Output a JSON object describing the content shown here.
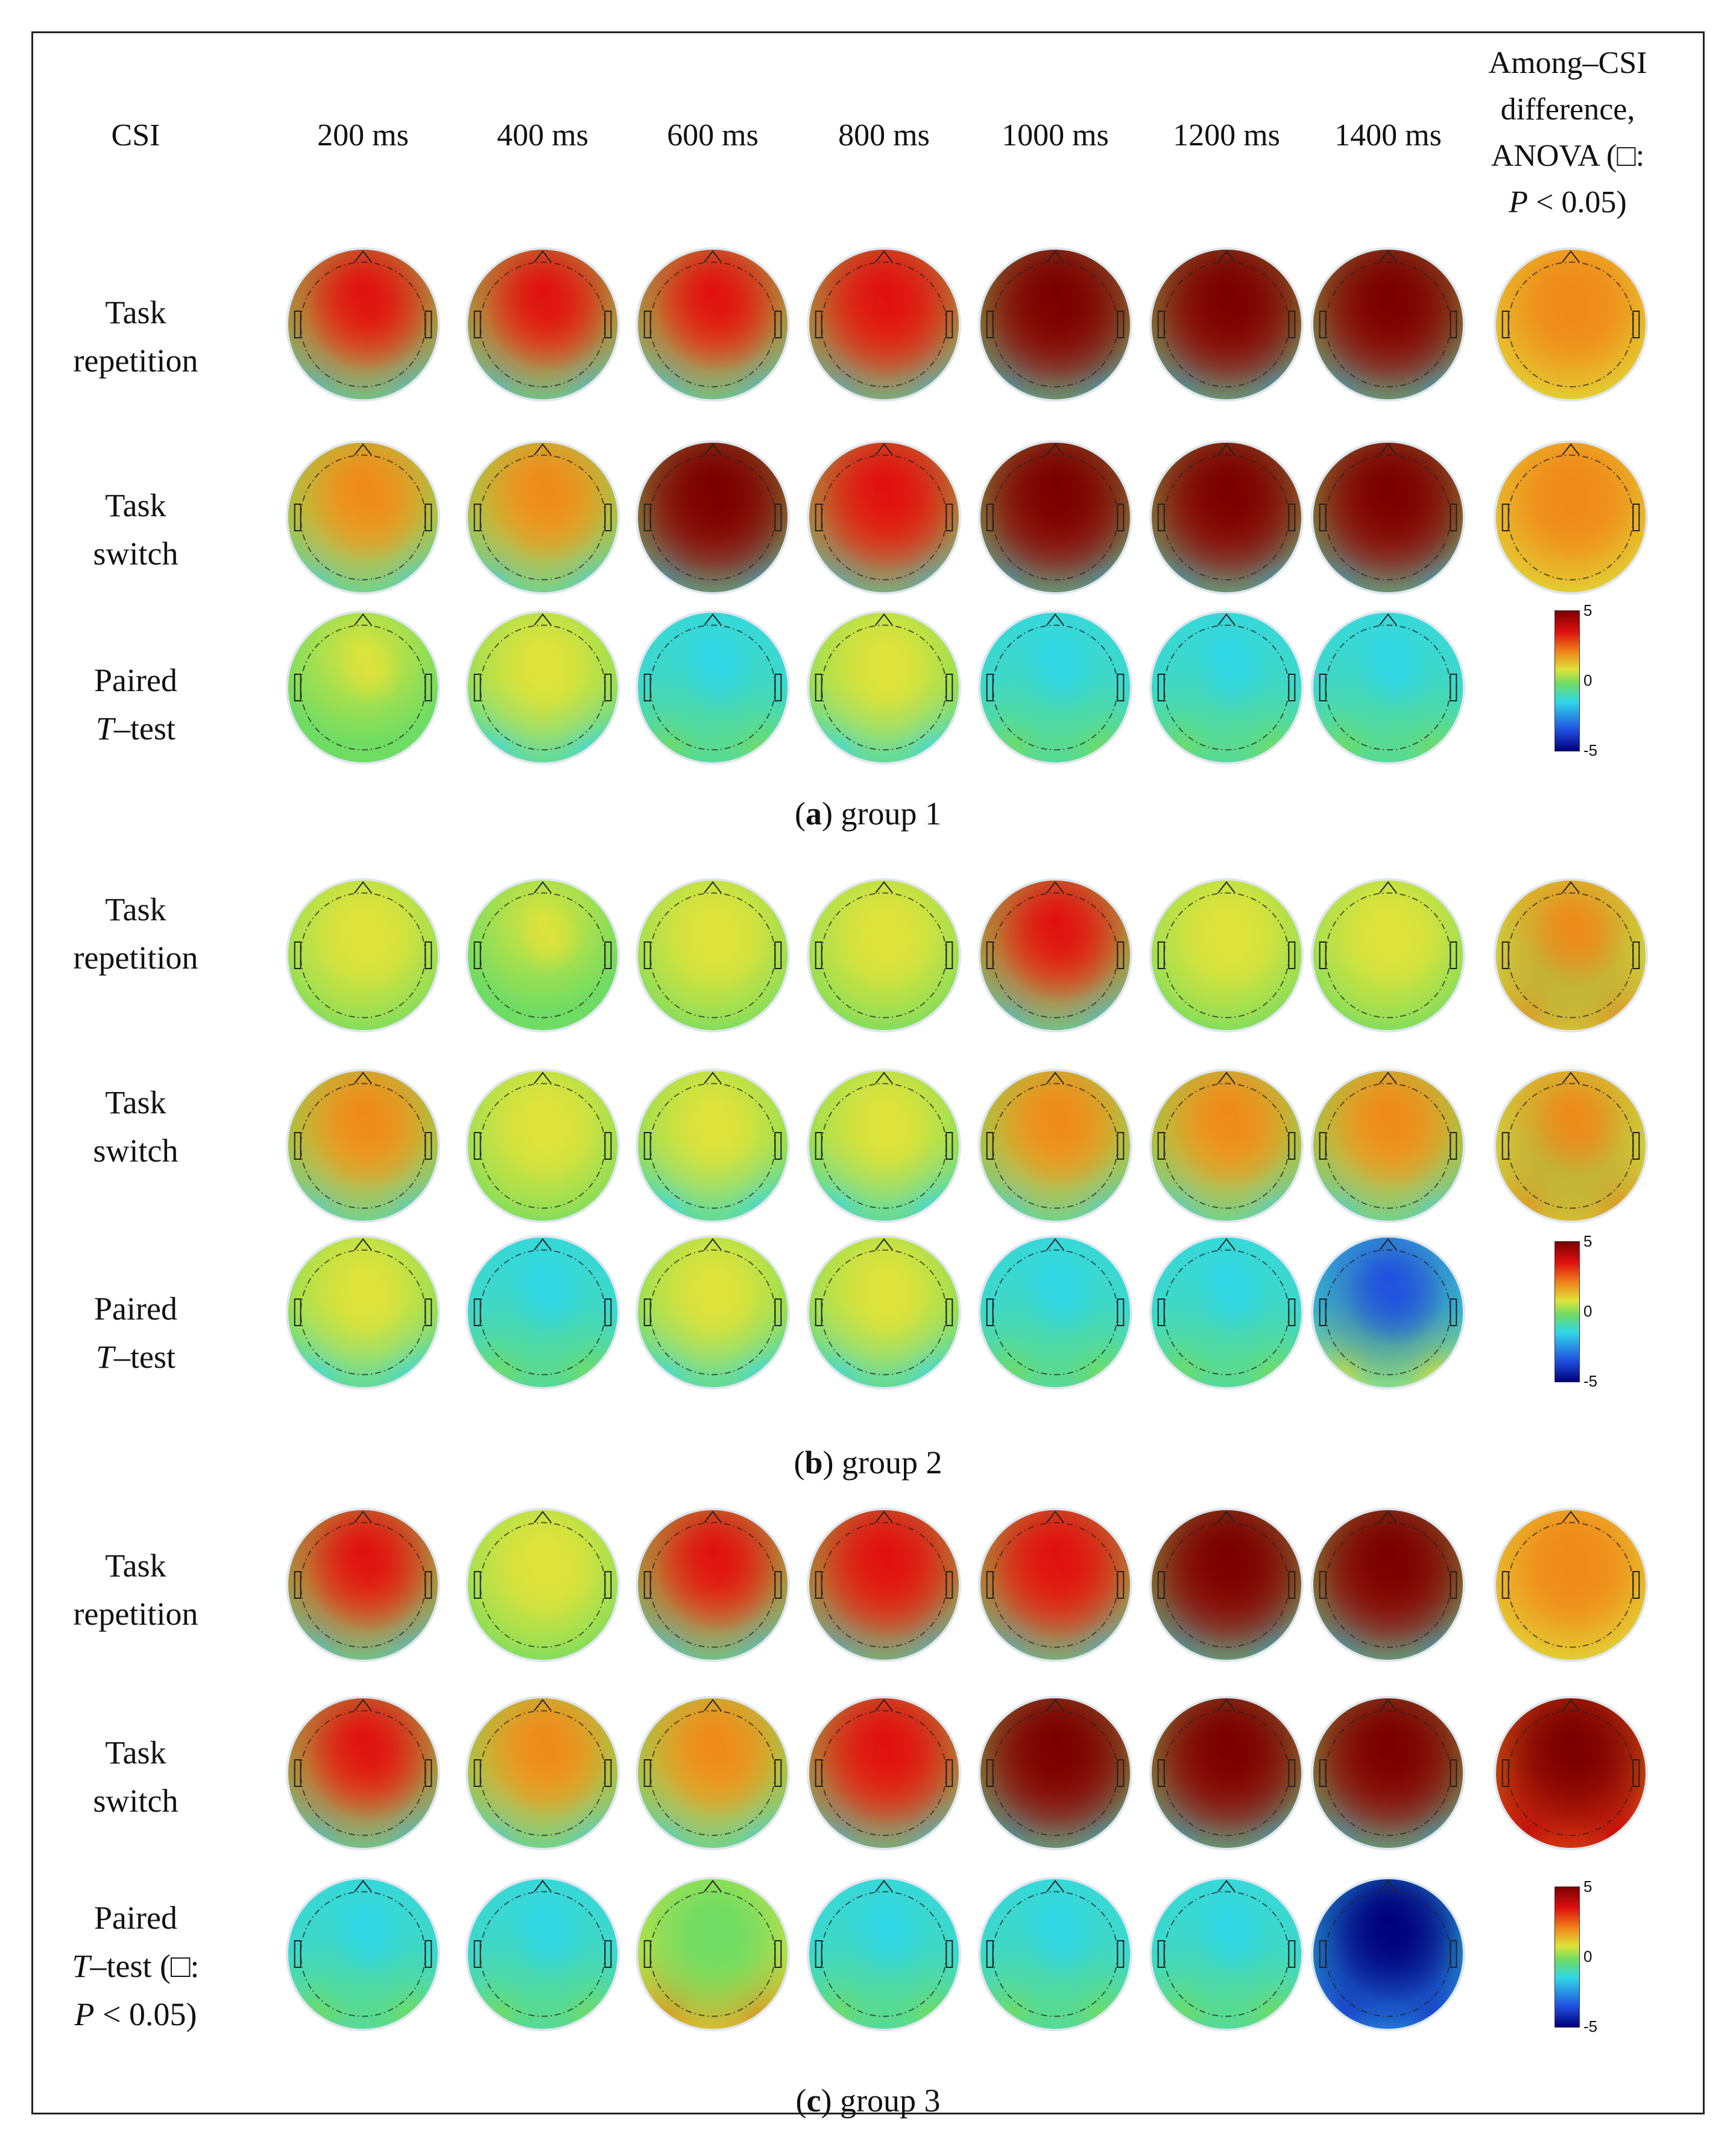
{
  "header": {
    "csi": "CSI",
    "times": [
      "200 ms",
      "400 ms",
      "600 ms",
      "800 ms",
      "1000 ms",
      "1200 ms",
      "1400 ms"
    ],
    "anova": [
      "Among–CSI",
      "difference,",
      "ANOVA (□:",
      "P < 0.05)"
    ]
  },
  "groups": [
    {
      "caption_letter": "a",
      "caption_text": "group 1",
      "rows": [
        {
          "label": [
            "Task",
            "repetition"
          ],
          "maps": [
            "red-front",
            "red-front",
            "red-front",
            "red-strong",
            "dark-red",
            "dark-red",
            "dark-red",
            "orange-anova"
          ]
        },
        {
          "label": [
            "Task",
            "switch"
          ],
          "maps": [
            "orange",
            "orange",
            "dark-red",
            "red-strong",
            "dark-red",
            "dark-red",
            "dark-red",
            "orange-anova"
          ]
        },
        {
          "label": [
            "Paired",
            "T–test"
          ],
          "maps": [
            "green",
            "green-yellow",
            "cyan",
            "green-yellow",
            "cyan",
            "cyan",
            "cyan"
          ]
        }
      ],
      "colorbar": {
        "max": "5",
        "mid": "0",
        "min": "-5"
      }
    },
    {
      "caption_letter": "b",
      "caption_text": "group 2",
      "rows": [
        {
          "label": [
            "Task",
            "repetition"
          ],
          "maps": [
            "yellow",
            "green",
            "yellow",
            "yellow",
            "red-front",
            "yellow",
            "yellow",
            "yellow-anova"
          ]
        },
        {
          "label": [
            "Task",
            "switch"
          ],
          "maps": [
            "orange",
            "yellow",
            "green-yellow",
            "green-yellow",
            "orange",
            "orange",
            "orange",
            "yellow-anova"
          ]
        },
        {
          "label": [
            "Paired",
            "T–test"
          ],
          "maps": [
            "green-yellow",
            "cyan",
            "green-yellow",
            "green-yellow",
            "cyan",
            "cyan",
            "blue-front"
          ]
        }
      ],
      "colorbar": {
        "max": "5",
        "mid": "0",
        "min": "-5"
      }
    },
    {
      "caption_letter": "c",
      "caption_text": "group 3",
      "rows": [
        {
          "label": [
            "Task",
            "repetition"
          ],
          "maps": [
            "red-front",
            "yellow",
            "red-front",
            "red-strong",
            "red-strong",
            "dark-red",
            "dark-red",
            "orange-anova"
          ]
        },
        {
          "label": [
            "Task",
            "switch"
          ],
          "maps": [
            "red-front",
            "orange",
            "orange",
            "red-strong",
            "dark-red",
            "dark-red",
            "dark-red",
            "dark-anova"
          ]
        },
        {
          "label": [
            "Paired",
            "T–test (□:",
            "P < 0.05)"
          ],
          "maps": [
            "cyan",
            "cyan",
            "orange-low",
            "cyan",
            "cyan",
            "cyan",
            "dark-blue"
          ]
        }
      ],
      "colorbar": {
        "max": "5",
        "mid": "0",
        "min": "-5"
      }
    }
  ],
  "colors": {
    "dark_red": "#7a0000",
    "red": "#e01010",
    "orange": "#f08a1a",
    "yellow": "#dfe33a",
    "green": "#6fdc64",
    "cyan": "#2fd7e8",
    "blue": "#2050e0",
    "dark_blue": "#00007a"
  }
}
